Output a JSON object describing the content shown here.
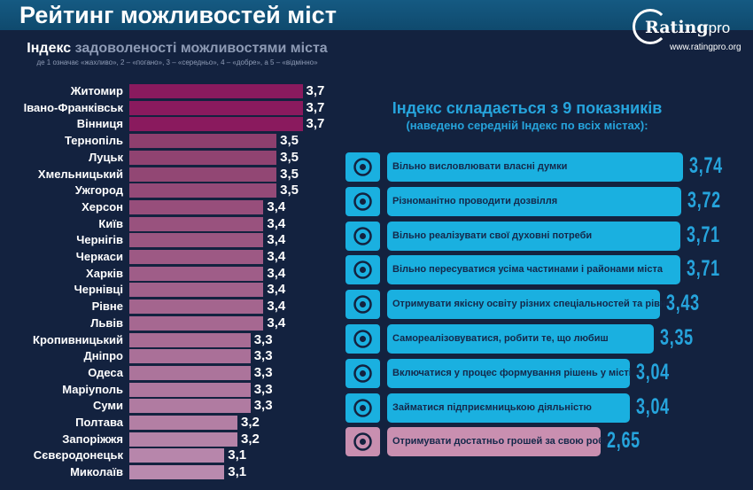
{
  "header": {
    "title": "Рейтинг можливостей міст"
  },
  "logo": {
    "name_bold": "Rating",
    "name_light": "pro",
    "url": "www.ratingpro.org"
  },
  "colors": {
    "background": "#13223f",
    "header": "#125378",
    "top_bar": "#8a1a5e",
    "city_bar_start": "#8e3f6e",
    "city_bar_end": "#b98aae",
    "indicator_bar": "#1ab0e0",
    "indicator_low": "#c98fb0",
    "value_blue": "#26a4dc"
  },
  "chart_data": [
    {
      "type": "bar",
      "orientation": "horizontal",
      "title_bold": "Індекс",
      "title_rest": "задоволеності можливостями міста",
      "subtitle": "де 1 означає «жахливо», 2 – «погано», 3 – «середньо», 4 – «добре», а 5 – «відмінно»",
      "categories": [
        "Житомир",
        "Івано-Франківськ",
        "Вінниця",
        "Тернопіль",
        "Луцьк",
        "Хмельницький",
        "Ужгород",
        "Херсон",
        "Київ",
        "Чернігів",
        "Черкаси",
        "Харків",
        "Чернівці",
        "Рівне",
        "Львів",
        "Кропивницький",
        "Дніпро",
        "Одеса",
        "Маріуполь",
        "Суми",
        "Полтава",
        "Запоріжжя",
        "Сєвєродонецьк",
        "Миколаїв"
      ],
      "values": [
        3.7,
        3.7,
        3.7,
        3.5,
        3.5,
        3.5,
        3.5,
        3.4,
        3.4,
        3.4,
        3.4,
        3.4,
        3.4,
        3.4,
        3.4,
        3.3,
        3.3,
        3.3,
        3.3,
        3.3,
        3.2,
        3.2,
        3.1,
        3.1
      ],
      "labels": [
        "3,7",
        "3,7",
        "3,7",
        "3,5",
        "3,5",
        "3,5",
        "3,5",
        "3,4",
        "3,4",
        "3,4",
        "3,4",
        "3,4",
        "3,4",
        "3,4",
        "3,4",
        "3,3",
        "3,3",
        "3,3",
        "3,3",
        "3,3",
        "3,2",
        "3,2",
        "3,1",
        "3,1"
      ]
    },
    {
      "type": "bar",
      "orientation": "horizontal",
      "title": "Індекс складається з 9 показників",
      "subtitle": "(наведено середній Індекс по всіх містах):",
      "categories": [
        "Вільно висловлювати власні думки",
        "Різноманітно проводити дозвілля",
        "Вільно реалізувати свої духовні потреби",
        "Вільно пересуватися усіма частинами і районами міста",
        "Отримувати якісну освіту різних спеціальностей та рівнів",
        "Самореалізовуватися, робити те, що любиш",
        "Включатися у процес формування рішень у місті",
        "Займатися підприємницькою діяльністю",
        "Отримувати достатньо грошей за свою роботу"
      ],
      "values": [
        3.74,
        3.72,
        3.71,
        3.71,
        3.43,
        3.35,
        3.04,
        3.04,
        2.65
      ],
      "labels": [
        "3,74",
        "3,72",
        "3,71",
        "3,71",
        "3,43",
        "3,35",
        "3,04",
        "3,04",
        "2,65"
      ],
      "icons": [
        "raised-hands-icon",
        "family-icon",
        "praying-hands-icon",
        "transport-icon",
        "graduation-cap-icon",
        "dancing-people-icon",
        "gear-people-icon",
        "shop-icon",
        "coins-icon"
      ]
    }
  ]
}
